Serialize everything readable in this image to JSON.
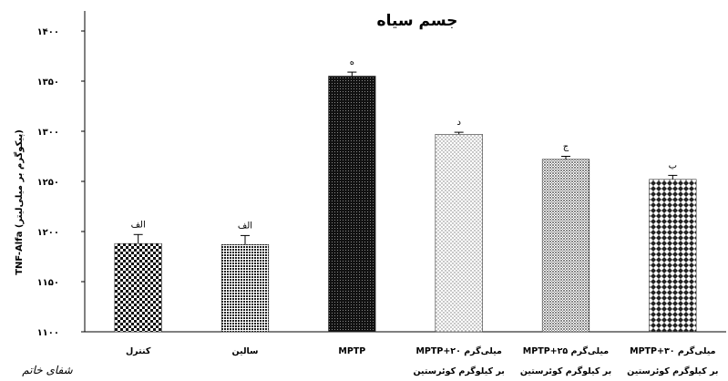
{
  "watermark": "شفای خاتم",
  "chart_data": {
    "type": "bar",
    "title": "جسم سیاه",
    "xlabel": "",
    "ylabel": "TNF-Alfa (پیکوگرم بر میلی‌لیتر)",
    "ylim": [
      1100,
      1420
    ],
    "yticks": [
      "۱۱۰۰",
      "۱۱۵۰",
      "۱۲۰۰",
      "۱۲۵۰",
      "۱۳۰۰",
      "۱۳۵۰",
      "۱۴۰۰"
    ],
    "ytick_values": [
      1100,
      1150,
      1200,
      1250,
      1300,
      1350,
      1400
    ],
    "grid": false,
    "legend": "none",
    "categories": [
      [
        "کنترل"
      ],
      [
        "سالین"
      ],
      [
        "MPTP"
      ],
      [
        "MPTP+۲۰ میلی‌گرم",
        "بر کیلوگرم کوئرستین"
      ],
      [
        "MPTP+۲۵ میلی‌گرم",
        "بر کیلوگرم کوئرستین"
      ],
      [
        "MPTP+۳۰ میلی‌گرم",
        "بر کیلوگرم کوئرستین"
      ]
    ],
    "values": [
      1188,
      1187,
      1355,
      1297,
      1272,
      1252
    ],
    "errors": [
      9,
      9,
      4,
      2,
      3,
      4
    ],
    "significance": [
      "الف",
      "الف",
      "ه",
      "د",
      "ج",
      "ب"
    ],
    "patterns": [
      "checker-large",
      "fine-dots",
      "dense-dark",
      "light-dots",
      "medium-dots",
      "diamond-check"
    ]
  }
}
